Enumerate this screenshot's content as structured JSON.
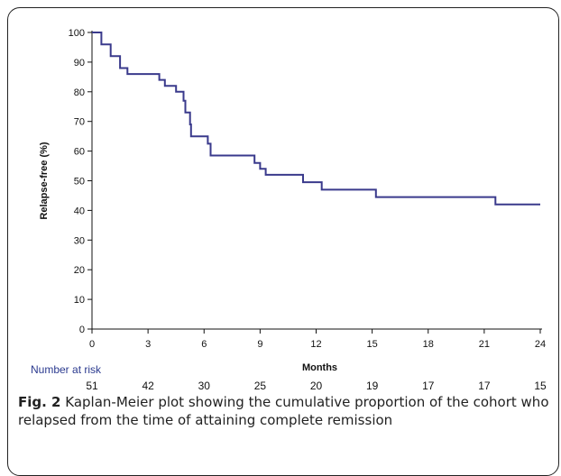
{
  "chart_data": {
    "type": "line",
    "step": true,
    "xlabel": "Months",
    "ylabel": "Relapse-free (%)",
    "xlim": [
      0,
      24
    ],
    "ylim": [
      0,
      100
    ],
    "x_ticks": [
      0,
      3,
      6,
      9,
      12,
      15,
      18,
      21,
      24
    ],
    "y_ticks": [
      0,
      10,
      20,
      30,
      40,
      50,
      60,
      70,
      80,
      90,
      100
    ],
    "grid": false,
    "line_color": "#3a3a8c",
    "series": [
      {
        "points": [
          [
            0,
            100
          ],
          [
            0.5,
            96
          ],
          [
            1.0,
            92
          ],
          [
            1.5,
            88
          ],
          [
            1.9,
            86
          ],
          [
            3.6,
            84
          ],
          [
            3.9,
            82
          ],
          [
            4.5,
            80
          ],
          [
            4.9,
            77
          ],
          [
            5.0,
            73
          ],
          [
            5.25,
            69
          ],
          [
            5.3,
            65
          ],
          [
            6.2,
            62.5
          ],
          [
            6.35,
            58.5
          ],
          [
            8.7,
            56
          ],
          [
            9.0,
            54
          ],
          [
            9.3,
            52
          ],
          [
            11.3,
            49.5
          ],
          [
            12.3,
            47
          ],
          [
            15.2,
            44.5
          ],
          [
            21.6,
            42
          ],
          [
            24.0,
            42
          ]
        ]
      }
    ],
    "risk_table": {
      "title": "Number at risk",
      "values": [
        "51",
        "42",
        "30",
        "25",
        "20",
        "19",
        "17",
        "17",
        "15"
      ]
    }
  },
  "caption": {
    "label": "Fig. 2",
    "text": " Kaplan-Meier plot showing the cumulative proportion of the cohort who relapsed from the time of attaining complete remission"
  }
}
